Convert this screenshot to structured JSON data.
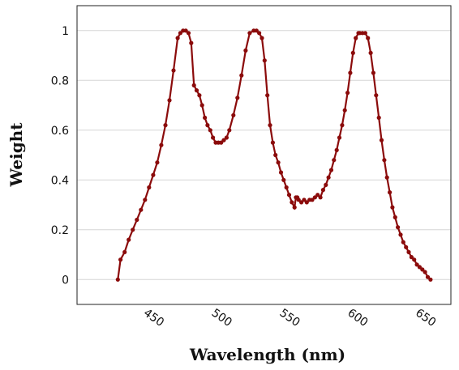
{
  "chart_data": {
    "type": "line",
    "title": "",
    "xlabel": "Wavelength (nm)",
    "ylabel": "Weight",
    "xlim": [
      395,
      670
    ],
    "ylim": [
      -0.1,
      1.1
    ],
    "grid": true,
    "x_ticks": [
      "450",
      "500",
      "550",
      "600",
      "650"
    ],
    "y_ticks": [
      "0",
      "0.2",
      "0.4",
      "0.6",
      "0.8",
      "1"
    ],
    "series_color": "#8b0b0b",
    "series": [
      {
        "x": [
          425,
          427,
          430,
          433,
          436,
          439,
          442,
          445,
          448,
          451,
          454,
          457,
          460,
          463,
          466,
          469,
          471,
          473,
          475,
          477,
          479,
          481,
          483,
          485,
          487,
          489,
          491,
          493,
          495,
          497,
          499,
          501,
          503,
          505,
          507,
          510,
          513,
          516,
          519,
          522,
          525,
          527,
          529,
          531,
          533,
          535,
          537,
          539,
          541,
          543,
          545,
          547,
          549,
          551,
          553,
          555,
          556,
          557,
          558,
          560,
          562,
          564,
          566,
          568,
          570,
          572,
          574,
          576,
          578,
          580,
          582,
          584,
          586,
          588,
          590,
          592,
          594,
          596,
          598,
          600,
          602,
          603,
          605,
          607,
          609,
          611,
          613,
          615,
          617,
          619,
          621,
          623,
          625,
          627,
          629,
          631,
          633,
          635,
          637,
          639,
          641,
          643,
          645,
          647,
          649,
          651,
          653,
          655
        ],
        "values": [
          0.0,
          0.08,
          0.11,
          0.16,
          0.2,
          0.24,
          0.28,
          0.32,
          0.37,
          0.42,
          0.47,
          0.54,
          0.62,
          0.72,
          0.84,
          0.97,
          0.99,
          1.0,
          1.0,
          0.99,
          0.95,
          0.78,
          0.76,
          0.74,
          0.7,
          0.65,
          0.62,
          0.6,
          0.57,
          0.55,
          0.55,
          0.55,
          0.56,
          0.57,
          0.6,
          0.66,
          0.73,
          0.82,
          0.92,
          0.99,
          1.0,
          1.0,
          0.99,
          0.97,
          0.88,
          0.74,
          0.62,
          0.55,
          0.5,
          0.47,
          0.43,
          0.4,
          0.37,
          0.34,
          0.31,
          0.29,
          0.33,
          0.33,
          0.32,
          0.31,
          0.32,
          0.31,
          0.32,
          0.32,
          0.33,
          0.34,
          0.33,
          0.36,
          0.38,
          0.41,
          0.44,
          0.48,
          0.52,
          0.57,
          0.62,
          0.68,
          0.75,
          0.83,
          0.91,
          0.97,
          0.99,
          0.99,
          0.99,
          0.99,
          0.97,
          0.91,
          0.83,
          0.74,
          0.65,
          0.56,
          0.48,
          0.41,
          0.35,
          0.29,
          0.25,
          0.21,
          0.18,
          0.15,
          0.13,
          0.11,
          0.09,
          0.08,
          0.06,
          0.05,
          0.04,
          0.03,
          0.01,
          0.0
        ]
      }
    ]
  }
}
